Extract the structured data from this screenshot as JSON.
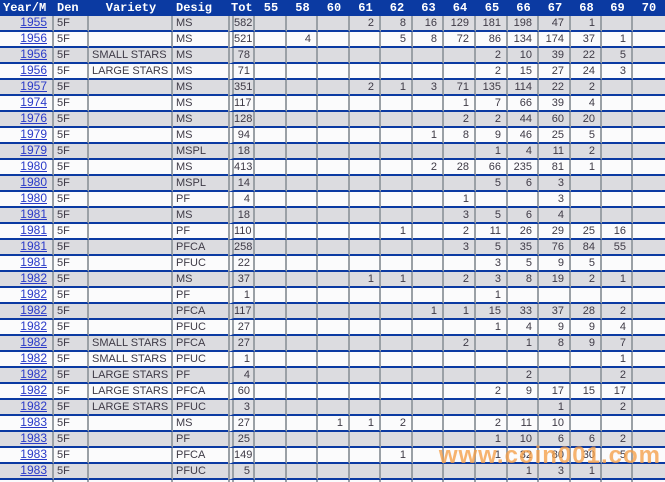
{
  "table": {
    "columns": [
      "Year/M",
      "Den",
      "Variety",
      "Desig",
      "Tot",
      "55",
      "58",
      "60",
      "61",
      "62",
      "63",
      "64",
      "65",
      "66",
      "67",
      "68",
      "69",
      "70"
    ],
    "rows": [
      [
        "1955",
        "5F",
        "",
        "MS",
        "582",
        "",
        "",
        "",
        "2",
        "8",
        "16",
        "129",
        "181",
        "198",
        "47",
        "1",
        "",
        ""
      ],
      [
        "1956",
        "5F",
        "",
        "MS",
        "521",
        "",
        "4",
        "",
        "",
        "5",
        "8",
        "72",
        "86",
        "134",
        "174",
        "37",
        "1",
        ""
      ],
      [
        "1956",
        "5F",
        "SMALL STARS",
        "MS",
        "78",
        "",
        "",
        "",
        "",
        "",
        "",
        "",
        "2",
        "10",
        "39",
        "22",
        "5",
        ""
      ],
      [
        "1956",
        "5F",
        "LARGE STARS",
        "MS",
        "71",
        "",
        "",
        "",
        "",
        "",
        "",
        "",
        "2",
        "15",
        "27",
        "24",
        "3",
        ""
      ],
      [
        "1957",
        "5F",
        "",
        "MS",
        "351",
        "",
        "",
        "",
        "2",
        "1",
        "3",
        "71",
        "135",
        "114",
        "22",
        "2",
        "",
        ""
      ],
      [
        "1974",
        "5F",
        "",
        "MS",
        "117",
        "",
        "",
        "",
        "",
        "",
        "",
        "1",
        "7",
        "66",
        "39",
        "4",
        "",
        ""
      ],
      [
        "1976",
        "5F",
        "",
        "MS",
        "128",
        "",
        "",
        "",
        "",
        "",
        "",
        "2",
        "2",
        "44",
        "60",
        "20",
        "",
        ""
      ],
      [
        "1979",
        "5F",
        "",
        "MS",
        "94",
        "",
        "",
        "",
        "",
        "",
        "1",
        "8",
        "9",
        "46",
        "25",
        "5",
        "",
        ""
      ],
      [
        "1979",
        "5F",
        "",
        "MSPL",
        "18",
        "",
        "",
        "",
        "",
        "",
        "",
        "",
        "1",
        "4",
        "11",
        "2",
        "",
        ""
      ],
      [
        "1980",
        "5F",
        "",
        "MS",
        "413",
        "",
        "",
        "",
        "",
        "",
        "2",
        "28",
        "66",
        "235",
        "81",
        "1",
        "",
        ""
      ],
      [
        "1980",
        "5F",
        "",
        "MSPL",
        "14",
        "",
        "",
        "",
        "",
        "",
        "",
        "",
        "5",
        "6",
        "3",
        "",
        "",
        ""
      ],
      [
        "1980",
        "5F",
        "",
        "PF",
        "4",
        "",
        "",
        "",
        "",
        "",
        "",
        "1",
        "",
        "",
        "3",
        "",
        "",
        ""
      ],
      [
        "1981",
        "5F",
        "",
        "MS",
        "18",
        "",
        "",
        "",
        "",
        "",
        "",
        "3",
        "5",
        "6",
        "4",
        "",
        "",
        ""
      ],
      [
        "1981",
        "5F",
        "",
        "PF",
        "110",
        "",
        "",
        "",
        "",
        "1",
        "",
        "2",
        "11",
        "26",
        "29",
        "25",
        "16",
        ""
      ],
      [
        "1981",
        "5F",
        "",
        "PFCA",
        "258",
        "",
        "",
        "",
        "",
        "",
        "",
        "3",
        "5",
        "35",
        "76",
        "84",
        "55",
        ""
      ],
      [
        "1981",
        "5F",
        "",
        "PFUC",
        "22",
        "",
        "",
        "",
        "",
        "",
        "",
        "",
        "3",
        "5",
        "9",
        "5",
        "",
        ""
      ],
      [
        "1982",
        "5F",
        "",
        "MS",
        "37",
        "",
        "",
        "",
        "1",
        "1",
        "",
        "2",
        "3",
        "8",
        "19",
        "2",
        "1",
        ""
      ],
      [
        "1982",
        "5F",
        "",
        "PF",
        "1",
        "",
        "",
        "",
        "",
        "",
        "",
        "",
        "1",
        "",
        "",
        "",
        "",
        ""
      ],
      [
        "1982",
        "5F",
        "",
        "PFCA",
        "117",
        "",
        "",
        "",
        "",
        "",
        "1",
        "1",
        "15",
        "33",
        "37",
        "28",
        "2",
        ""
      ],
      [
        "1982",
        "5F",
        "",
        "PFUC",
        "27",
        "",
        "",
        "",
        "",
        "",
        "",
        "",
        "1",
        "4",
        "9",
        "9",
        "4",
        ""
      ],
      [
        "1982",
        "5F",
        "SMALL STARS",
        "PFCA",
        "27",
        "",
        "",
        "",
        "",
        "",
        "",
        "2",
        "",
        "1",
        "8",
        "9",
        "7",
        ""
      ],
      [
        "1982",
        "5F",
        "SMALL STARS",
        "PFUC",
        "1",
        "",
        "",
        "",
        "",
        "",
        "",
        "",
        "",
        "",
        "",
        "",
        "1",
        ""
      ],
      [
        "1982",
        "5F",
        "LARGE STARS",
        "PF",
        "4",
        "",
        "",
        "",
        "",
        "",
        "",
        "",
        "",
        "2",
        "",
        "",
        "2",
        ""
      ],
      [
        "1982",
        "5F",
        "LARGE STARS",
        "PFCA",
        "60",
        "",
        "",
        "",
        "",
        "",
        "",
        "",
        "2",
        "9",
        "17",
        "15",
        "17",
        ""
      ],
      [
        "1982",
        "5F",
        "LARGE STARS",
        "PFUC",
        "3",
        "",
        "",
        "",
        "",
        "",
        "",
        "",
        "",
        "",
        "1",
        "",
        "2",
        ""
      ],
      [
        "1983",
        "5F",
        "",
        "MS",
        "27",
        "",
        "",
        "1",
        "1",
        "2",
        "",
        "",
        "2",
        "11",
        "10",
        "",
        "",
        ""
      ],
      [
        "1983",
        "5F",
        "",
        "PF",
        "25",
        "",
        "",
        "",
        "",
        "",
        "",
        "",
        "1",
        "10",
        "6",
        "6",
        "2",
        ""
      ],
      [
        "1983",
        "5F",
        "",
        "PFCA",
        "149",
        "",
        "",
        "",
        "",
        "1",
        "",
        "",
        "1",
        "32",
        "80",
        "30",
        "5",
        ""
      ],
      [
        "1983",
        "5F",
        "",
        "PFUC",
        "5",
        "",
        "",
        "",
        "",
        "",
        "",
        "",
        "",
        "1",
        "3",
        "1",
        "",
        ""
      ]
    ]
  },
  "watermark": {
    "text": "www.coin001.com"
  },
  "colors": {
    "header_bg": "#0b3aa2",
    "separator": "#0b3aa2",
    "grid": "#9aa0a6",
    "row_odd": "#dcdce0",
    "row_even": "#fbfbfc",
    "year_link": "#2b3bc8",
    "text": "#3e3a46",
    "watermark": "#f59f48"
  }
}
